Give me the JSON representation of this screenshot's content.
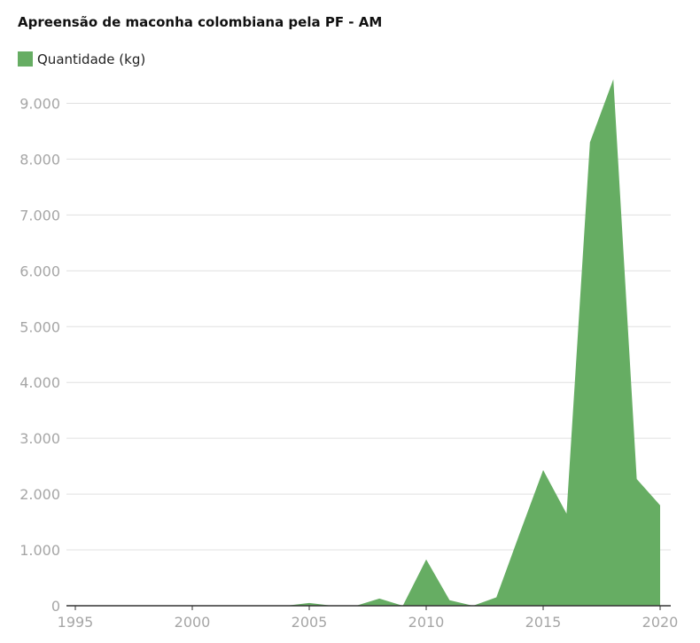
{
  "chart_data": {
    "type": "area",
    "title": "Apreensão de maconha colombiana pela PF - AM",
    "x": [
      1995,
      1996,
      1997,
      1998,
      1999,
      2000,
      2001,
      2002,
      2003,
      2004,
      2005,
      2006,
      2007,
      2008,
      2009,
      2010,
      2011,
      2012,
      2013,
      2014,
      2015,
      2016,
      2017,
      2018,
      2019,
      2020
    ],
    "series": [
      {
        "name": "Quantidade (kg)",
        "color": "#66ad63",
        "values": [
          0,
          0,
          0,
          0,
          0,
          0,
          0,
          0,
          0,
          0,
          50,
          0,
          0,
          130,
          0,
          830,
          100,
          0,
          150,
          1300,
          2430,
          1650,
          8300,
          9430,
          2270,
          1800
        ]
      }
    ],
    "xlim": [
      1995,
      2020
    ],
    "xticks": [
      1995,
      2000,
      2005,
      2010,
      2015,
      2020
    ],
    "ylim": [
      0,
      9500
    ],
    "yticks": [
      0,
      {
        "value": 1000,
        "label": "1.000"
      },
      {
        "value": 2000,
        "label": "2.000"
      },
      {
        "value": 3000,
        "label": "3.000"
      },
      {
        "value": 4000,
        "label": "4.000"
      },
      {
        "value": 5000,
        "label": "5.000"
      },
      {
        "value": 6000,
        "label": "6.000"
      },
      {
        "value": 7000,
        "label": "7.000"
      },
      {
        "value": 8000,
        "label": "8.000"
      },
      {
        "value": 9000,
        "label": "9.000"
      }
    ],
    "grid": true
  }
}
